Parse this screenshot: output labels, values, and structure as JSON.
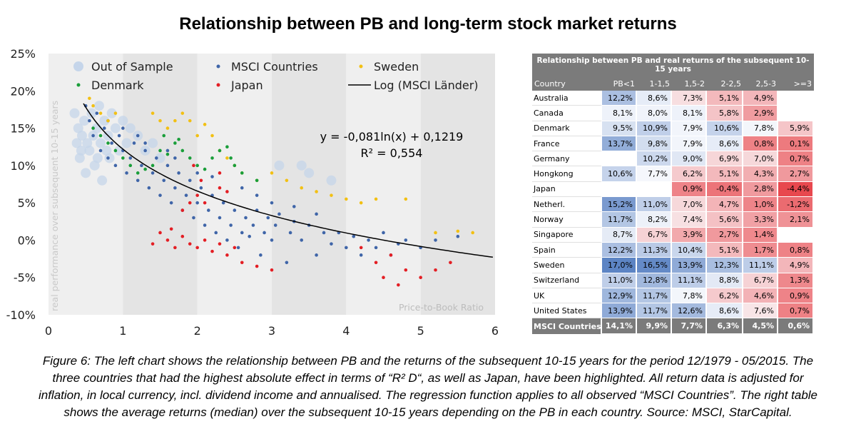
{
  "title": "Relationship between PB and long-term stock market returns",
  "chart_data": {
    "type": "scatter",
    "xlabel": "Price-to-Book Ratio",
    "ylabel": "real performance over subsequent 10-15 years",
    "xlim": [
      0,
      6
    ],
    "ylim": [
      -0.1,
      0.25
    ],
    "x_ticks": [
      "0",
      "1",
      "2",
      "3",
      "4",
      "5",
      "6"
    ],
    "y_ticks": [
      "25%",
      "20%",
      "15%",
      "10%",
      "5%",
      "0%",
      "-5%",
      "-10%"
    ],
    "legend": [
      "Out of Sample",
      "MSCI Countries",
      "Sweden",
      "Denmark",
      "Japan",
      "Log (MSCI Länder)"
    ],
    "colors": {
      "out_of_sample": "#c5d5ea",
      "msci": "#3f65a8",
      "sweden": "#f2c014",
      "denmark": "#1a9e3a",
      "japan": "#e31e24",
      "fit": "#000000"
    },
    "regression": {
      "equation": "y = -0,081ln(x) + 0,1219",
      "r2": "R² = 0,554",
      "a": -0.081,
      "b": 0.1219
    },
    "series": [
      {
        "name": "Out of Sample",
        "points": [
          [
            0.35,
            0.17
          ],
          [
            0.38,
            0.13
          ],
          [
            0.4,
            0.15
          ],
          [
            0.42,
            0.11
          ],
          [
            0.45,
            0.14
          ],
          [
            0.48,
            0.16
          ],
          [
            0.5,
            0.09
          ],
          [
            0.55,
            0.12
          ],
          [
            0.58,
            0.17
          ],
          [
            0.6,
            0.14
          ],
          [
            0.62,
            0.1
          ],
          [
            0.65,
            0.15
          ],
          [
            0.68,
            0.18
          ],
          [
            0.7,
            0.13
          ],
          [
            0.72,
            0.08
          ],
          [
            0.75,
            0.16
          ],
          [
            0.8,
            0.14
          ],
          [
            0.82,
            0.11
          ],
          [
            0.85,
            0.17
          ],
          [
            0.9,
            0.15
          ],
          [
            0.95,
            0.12
          ],
          [
            1.0,
            0.16
          ],
          [
            1.05,
            0.13
          ],
          [
            1.1,
            0.15
          ],
          [
            1.2,
            0.14
          ],
          [
            1.3,
            0.12
          ],
          [
            1.4,
            0.13
          ],
          [
            1.5,
            0.11
          ],
          [
            3.1,
            0.1
          ],
          [
            3.4,
            0.1
          ],
          [
            3.5,
            0.09
          ],
          [
            3.8,
            0.08
          ],
          [
            0.44,
            0.12
          ],
          [
            0.52,
            0.13
          ],
          [
            0.66,
            0.11
          ],
          [
            0.78,
            0.12
          ]
        ]
      },
      {
        "name": "MSCI Countries",
        "points": [
          [
            0.5,
            0.18
          ],
          [
            0.55,
            0.16
          ],
          [
            0.6,
            0.14
          ],
          [
            0.65,
            0.17
          ],
          [
            0.7,
            0.12
          ],
          [
            0.75,
            0.15
          ],
          [
            0.8,
            0.11
          ],
          [
            0.85,
            0.13
          ],
          [
            0.9,
            0.1
          ],
          [
            0.95,
            0.14
          ],
          [
            1.0,
            0.12
          ],
          [
            1.05,
            0.09
          ],
          [
            1.1,
            0.11
          ],
          [
            1.15,
            0.13
          ],
          [
            1.2,
            0.08
          ],
          [
            1.25,
            0.1
          ],
          [
            1.3,
            0.12
          ],
          [
            1.35,
            0.07
          ],
          [
            1.4,
            0.09
          ],
          [
            1.45,
            0.11
          ],
          [
            1.5,
            0.06
          ],
          [
            1.55,
            0.08
          ],
          [
            1.6,
            0.1
          ],
          [
            1.65,
            0.05
          ],
          [
            1.7,
            0.07
          ],
          [
            1.75,
            0.09
          ],
          [
            1.8,
            0.04
          ],
          [
            1.85,
            0.06
          ],
          [
            1.9,
            0.08
          ],
          [
            1.95,
            0.03
          ],
          [
            2.0,
            0.05
          ],
          [
            2.05,
            0.07
          ],
          [
            2.1,
            0.02
          ],
          [
            2.15,
            0.04
          ],
          [
            2.2,
            0.06
          ],
          [
            2.25,
            0.01
          ],
          [
            2.3,
            0.03
          ],
          [
            2.35,
            0.05
          ],
          [
            2.4,
            0.0
          ],
          [
            2.45,
            0.02
          ],
          [
            2.5,
            0.04
          ],
          [
            2.55,
            -0.01
          ],
          [
            2.6,
            0.01
          ],
          [
            2.65,
            0.03
          ],
          [
            2.7,
            0.005
          ],
          [
            2.75,
            0.02
          ],
          [
            2.8,
            0.04
          ],
          [
            2.85,
            -0.02
          ],
          [
            2.9,
            0.01
          ],
          [
            2.95,
            0.03
          ],
          [
            3.0,
            0.0
          ],
          [
            3.05,
            0.02
          ],
          [
            3.1,
            0.035
          ],
          [
            3.2,
            -0.03
          ],
          [
            3.25,
            0.01
          ],
          [
            3.3,
            0.025
          ],
          [
            3.4,
            0.0
          ],
          [
            3.5,
            0.02
          ],
          [
            3.6,
            -0.02
          ],
          [
            3.7,
            0.01
          ],
          [
            3.8,
            -0.005
          ],
          [
            3.9,
            0.01
          ],
          [
            4.0,
            -0.01
          ],
          [
            4.1,
            0.005
          ],
          [
            4.2,
            -0.02
          ],
          [
            4.3,
            0.0
          ],
          [
            4.4,
            -0.01
          ],
          [
            4.5,
            0.01
          ],
          [
            4.6,
            -0.02
          ],
          [
            4.7,
            -0.005
          ],
          [
            4.8,
            0.0
          ],
          [
            5.0,
            -0.01
          ],
          [
            5.2,
            0.0
          ],
          [
            5.5,
            0.005
          ],
          [
            1.2,
            0.14
          ],
          [
            1.3,
            0.13
          ],
          [
            1.6,
            0.12
          ],
          [
            1.7,
            0.11
          ],
          [
            2.0,
            0.09
          ],
          [
            2.2,
            0.085
          ],
          [
            2.6,
            0.07
          ],
          [
            2.8,
            0.06
          ],
          [
            3.0,
            0.05
          ],
          [
            3.3,
            0.045
          ],
          [
            3.6,
            0.035
          ],
          [
            0.8,
            0.16
          ],
          [
            1.0,
            0.15
          ]
        ]
      },
      {
        "name": "Sweden",
        "points": [
          [
            0.55,
            0.19
          ],
          [
            0.6,
            0.18
          ],
          [
            0.7,
            0.17
          ],
          [
            0.8,
            0.16
          ],
          [
            0.9,
            0.17
          ],
          [
            1.4,
            0.17
          ],
          [
            1.5,
            0.16
          ],
          [
            1.6,
            0.15
          ],
          [
            1.7,
            0.16
          ],
          [
            1.8,
            0.17
          ],
          [
            1.9,
            0.16
          ],
          [
            2.0,
            0.14
          ],
          [
            2.1,
            0.155
          ],
          [
            2.2,
            0.14
          ],
          [
            2.3,
            0.12
          ],
          [
            2.4,
            0.11
          ],
          [
            2.5,
            0.1
          ],
          [
            2.6,
            0.09
          ],
          [
            2.8,
            0.08
          ],
          [
            3.0,
            0.09
          ],
          [
            3.2,
            0.08
          ],
          [
            3.4,
            0.07
          ],
          [
            3.6,
            0.065
          ],
          [
            3.8,
            0.06
          ],
          [
            4.0,
            0.055
          ],
          [
            4.2,
            0.05
          ],
          [
            4.4,
            0.055
          ],
          [
            4.8,
            0.055
          ],
          [
            5.2,
            0.01
          ],
          [
            5.5,
            0.012
          ],
          [
            5.7,
            0.01
          ]
        ]
      },
      {
        "name": "Denmark",
        "points": [
          [
            0.6,
            0.15
          ],
          [
            0.7,
            0.14
          ],
          [
            0.8,
            0.13
          ],
          [
            0.9,
            0.12
          ],
          [
            1.0,
            0.11
          ],
          [
            1.1,
            0.1
          ],
          [
            1.2,
            0.09
          ],
          [
            1.3,
            0.095
          ],
          [
            1.4,
            0.1
          ],
          [
            1.5,
            0.12
          ],
          [
            1.6,
            0.115
          ],
          [
            1.7,
            0.13
          ],
          [
            1.8,
            0.12
          ],
          [
            1.9,
            0.11
          ],
          [
            2.0,
            0.1
          ],
          [
            2.1,
            0.095
          ],
          [
            2.2,
            0.11
          ],
          [
            2.3,
            0.12
          ],
          [
            2.4,
            0.125
          ],
          [
            2.5,
            0.1
          ],
          [
            2.6,
            0.09
          ],
          [
            2.8,
            0.08
          ],
          [
            1.55,
            0.14
          ],
          [
            1.75,
            0.135
          ],
          [
            2.45,
            0.11
          ]
        ]
      },
      {
        "name": "Japan",
        "points": [
          [
            1.6,
            0.0
          ],
          [
            1.7,
            -0.01
          ],
          [
            1.8,
            0.005
          ],
          [
            1.9,
            -0.005
          ],
          [
            2.0,
            -0.01
          ],
          [
            2.1,
            0.0
          ],
          [
            2.2,
            -0.015
          ],
          [
            2.3,
            -0.005
          ],
          [
            2.4,
            -0.02
          ],
          [
            2.5,
            -0.01
          ],
          [
            1.4,
            -0.005
          ],
          [
            1.5,
            0.01
          ],
          [
            1.65,
            0.015
          ],
          [
            2.6,
            -0.03
          ],
          [
            2.8,
            -0.035
          ],
          [
            3.0,
            -0.04
          ],
          [
            1.8,
            0.04
          ],
          [
            1.9,
            0.05
          ],
          [
            2.0,
            0.06
          ],
          [
            2.1,
            0.05
          ],
          [
            2.3,
            0.07
          ],
          [
            2.4,
            0.065
          ],
          [
            1.95,
            0.1
          ],
          [
            2.05,
            0.08
          ],
          [
            2.3,
            0.09
          ],
          [
            4.2,
            -0.01
          ],
          [
            4.4,
            -0.03
          ],
          [
            4.6,
            -0.02
          ],
          [
            4.8,
            -0.04
          ],
          [
            5.0,
            -0.05
          ],
          [
            5.2,
            -0.04
          ],
          [
            5.4,
            -0.03
          ],
          [
            4.5,
            -0.05
          ],
          [
            4.7,
            -0.06
          ]
        ]
      }
    ]
  },
  "table": {
    "title": "Relationship between PB and real returns of the subsequent 10-15 years",
    "headers": [
      "Country",
      "PB<1",
      "1-1,5",
      "1,5-2",
      "2-2,5",
      "2,5-3",
      ">=3"
    ],
    "rows": [
      {
        "country": "Australia",
        "cells": [
          "12,2%",
          "8,6%",
          "7,3%",
          "5,1%",
          "4,9%",
          ""
        ]
      },
      {
        "country": "Canada",
        "cells": [
          "8,1%",
          "8,0%",
          "8,1%",
          "5,8%",
          "2,9%",
          ""
        ]
      },
      {
        "country": "Denmark",
        "cells": [
          "9,5%",
          "10,9%",
          "7,9%",
          "10,6%",
          "7,8%",
          "5,9%"
        ]
      },
      {
        "country": "France",
        "cells": [
          "13,7%",
          "9,8%",
          "7,9%",
          "8,6%",
          "0,8%",
          "0,1%"
        ]
      },
      {
        "country": "Germany",
        "cells": [
          "",
          "10,2%",
          "9,0%",
          "6,9%",
          "7,0%",
          "0,7%"
        ]
      },
      {
        "country": "Hongkong",
        "cells": [
          "10,6%",
          "7,7%",
          "6,2%",
          "5,1%",
          "4,3%",
          "2,7%"
        ]
      },
      {
        "country": "Japan",
        "cells": [
          "",
          "",
          "0,9%",
          "-0,4%",
          "2,8%",
          "-4,4%"
        ]
      },
      {
        "country": "Netherl.",
        "cells": [
          "15,2%",
          "11,0%",
          "7,0%",
          "4,7%",
          "1,0%",
          "-1,2%"
        ]
      },
      {
        "country": "Norway",
        "cells": [
          "11,7%",
          "8,2%",
          "7,4%",
          "5,6%",
          "3,3%",
          "2,1%"
        ]
      },
      {
        "country": "Singapore",
        "cells": [
          "8,7%",
          "6,7%",
          "3,9%",
          "2,7%",
          "1,4%",
          ""
        ]
      },
      {
        "country": "Spain",
        "cells": [
          "12,2%",
          "11,3%",
          "10,4%",
          "5,1%",
          "1,7%",
          "0,8%"
        ]
      },
      {
        "country": "Sweden",
        "cells": [
          "17,0%",
          "16,5%",
          "13,9%",
          "12,3%",
          "11,1%",
          "4,9%"
        ]
      },
      {
        "country": "Switzerland",
        "cells": [
          "11,0%",
          "12,8%",
          "11,1%",
          "8,8%",
          "6,7%",
          "1,3%"
        ]
      },
      {
        "country": "UK",
        "cells": [
          "12,9%",
          "11,7%",
          "7,8%",
          "6,2%",
          "4,6%",
          "0,9%"
        ]
      },
      {
        "country": "United States",
        "cells": [
          "13,9%",
          "11,7%",
          "12,6%",
          "8,6%",
          "7,6%",
          "0,7%"
        ]
      }
    ],
    "total": {
      "country": "MSCI Countries",
      "cells": [
        "14,1%",
        "9,9%",
        "7,7%",
        "6,3%",
        "4,5%",
        "0,6%"
      ]
    }
  },
  "caption": "Figure 6: The left chart shows the relationship between PB and the returns of the subsequent 10-15 years for the period 12/1979 - 05/2015. The three countries that had the highest absolute effect in terms of “R² D“, as well as Japan, have been highlighted. All return data is adjusted for inflation, in local currency, incl. dividend income and annualised. The regression function applies to all observed “MSCI Countries”. The right table shows the average returns (median) over the subsequent 10-15 years depending on the PB in each country. Source: MSCI, StarCapital."
}
